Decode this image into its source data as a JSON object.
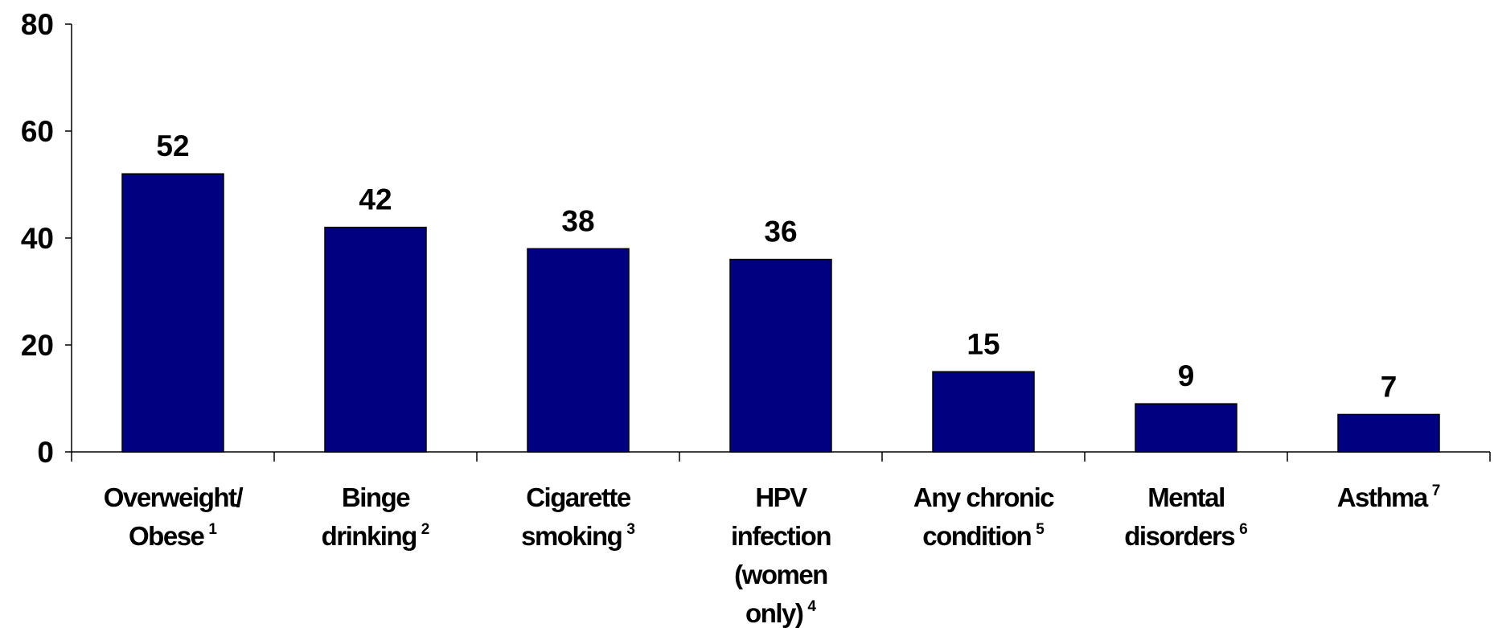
{
  "chart_data": {
    "type": "bar",
    "categories": [
      "Overweight/ Obese",
      "Binge drinking",
      "Cigarette smoking",
      "HPV infection (women only)",
      "Any chronic condition",
      "Mental disorders",
      "Asthma"
    ],
    "category_notes": [
      "1",
      "2",
      "3",
      "4",
      "5",
      "6",
      "7"
    ],
    "values": [
      52,
      42,
      38,
      36,
      15,
      9,
      7
    ],
    "color": "#000080",
    "ylim": [
      0,
      80
    ],
    "yticks": [
      0,
      20,
      40,
      60,
      80
    ],
    "grid": false
  }
}
